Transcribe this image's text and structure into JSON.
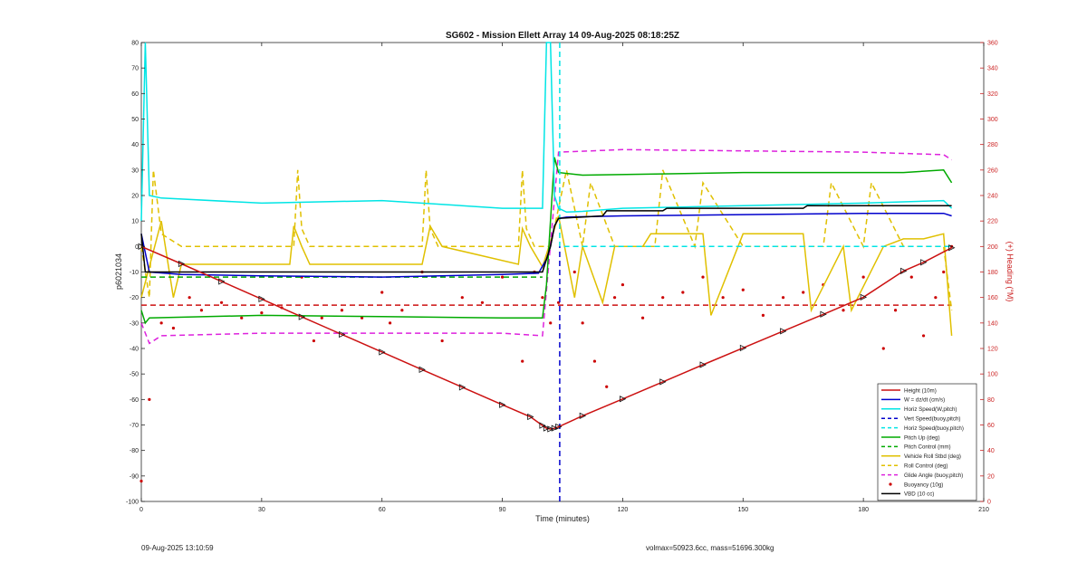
{
  "footer": {
    "left": "09-Aug-2025 13:10:59",
    "right": "volmax=50923.6cc, mass=51696.300kg"
  },
  "colors": {
    "height": "#cc1111",
    "w": "#0000cc",
    "horiz": "#00e5e5",
    "vert_speed_buoy": "#0000cc",
    "horiz_speed_buoy": "#00e5e5",
    "pitch": "#00aa00",
    "roll": "#e0c000",
    "glide": "#dd22dd",
    "buoyancy_pts": "#cc0000",
    "vbd": "#000000",
    "right_axis": "#cc2222"
  },
  "chart_data": {
    "type": "line",
    "title": "SG602 - Mission Ellett Array 14 09-Aug-2025 08:18:25Z",
    "xlabel": "Time (minutes)",
    "ylabel": "p6021034",
    "y2label": "(+) Heading (°M)",
    "xlim": [
      0,
      210
    ],
    "ylim": [
      -100,
      80
    ],
    "y2lim": [
      0,
      360
    ],
    "xticks": [
      0,
      30,
      60,
      90,
      120,
      150,
      180,
      210
    ],
    "yticks": [
      -100,
      -90,
      -80,
      -70,
      -60,
      -50,
      -40,
      -30,
      -20,
      -10,
      0,
      10,
      20,
      30,
      40,
      50,
      60,
      70,
      80
    ],
    "y2ticks": [
      0,
      20,
      40,
      60,
      80,
      100,
      120,
      140,
      160,
      180,
      200,
      220,
      240,
      260,
      280,
      300,
      320,
      340,
      360
    ],
    "grid": false,
    "legend_position": "bottom-right",
    "series": [
      {
        "name": "Height (10m)",
        "color": "#cc1111",
        "style": "solid",
        "markers": "triangle",
        "x": [
          0,
          10,
          20,
          30,
          40,
          50,
          60,
          70,
          80,
          90,
          97,
          100,
          101,
          102,
          103,
          104,
          110,
          120,
          130,
          140,
          150,
          160,
          170,
          180,
          190,
          195,
          202
        ],
        "y": [
          0,
          -6.8,
          -13.7,
          -20.6,
          -27.6,
          -34.5,
          -41.4,
          -48.3,
          -55.2,
          -62.1,
          -66.8,
          -70.2,
          -71.3,
          -71.6,
          -71.3,
          -70.7,
          -66.4,
          -59.8,
          -53.1,
          -46.4,
          -39.8,
          -33.2,
          -26.6,
          -19.9,
          -9.6,
          -6.2,
          -0.5
        ]
      },
      {
        "name": "W = dz/dt (cm/s)",
        "color": "#0000cc",
        "style": "solid",
        "x": [
          0,
          2,
          10,
          30,
          60,
          90,
          99,
          101,
          102,
          103,
          104,
          106,
          120,
          150,
          180,
          200,
          202
        ],
        "y": [
          5,
          -10,
          -11,
          -11.5,
          -12,
          -11,
          -10.5,
          -5,
          0,
          8,
          11,
          11.5,
          12,
          12.5,
          13,
          13,
          12
        ]
      },
      {
        "name": "Horiz Speed(W,pitch)",
        "color": "#00e5e5",
        "style": "solid",
        "x": [
          0,
          1,
          2,
          5,
          30,
          60,
          90,
          100,
          101,
          102,
          103,
          104,
          106,
          110,
          120,
          150,
          180,
          200,
          202
        ],
        "y": [
          10,
          80,
          20,
          19,
          17,
          18,
          15,
          15,
          80,
          80,
          20,
          15,
          13.5,
          13.8,
          15,
          16,
          17,
          18,
          15
        ]
      },
      {
        "name": "Vert Speed(buoy,pitch)",
        "color": "#0000cc",
        "style": "dashed",
        "x": [
          104.3,
          104.3
        ],
        "y": [
          -100,
          0
        ]
      },
      {
        "name": "Horiz Speed(buoy,pitch)",
        "color": "#00e5e5",
        "style": "dashed",
        "x": [
          104.3,
          104.3,
          202
        ],
        "y": [
          80,
          0,
          0
        ]
      },
      {
        "name": "Pitch Up (deg)",
        "color": "#00aa00",
        "style": "solid",
        "x": [
          0,
          1,
          2,
          30,
          60,
          90,
          100,
          101,
          102,
          103,
          104,
          110,
          130,
          150,
          170,
          190,
          200,
          202
        ],
        "y": [
          -25,
          -30,
          -28,
          -27,
          -27.5,
          -28,
          -28,
          -15,
          10,
          35,
          29,
          28,
          28.5,
          29,
          29,
          29,
          30,
          25
        ]
      },
      {
        "name": "Pitch Control (mm)",
        "color": "#00aa00",
        "style": "dashed",
        "x": [
          0,
          100
        ],
        "y": [
          -12,
          -12
        ]
      },
      {
        "name": "Vehicle Roll Stbd (deg)",
        "color": "#e0c000",
        "style": "solid",
        "x": [
          0,
          5,
          8,
          10,
          37,
          38,
          40,
          42,
          70,
          72,
          75,
          94,
          95,
          97,
          100,
          104,
          108,
          110,
          115,
          118,
          125,
          127,
          140,
          142,
          150,
          165,
          167,
          175,
          177,
          185,
          190,
          195,
          200,
          202
        ],
        "y": [
          -20,
          10,
          -20,
          -7,
          -7,
          8,
          0,
          -7,
          -7,
          8,
          0,
          -7,
          7,
          0,
          -8,
          12,
          -20,
          0,
          -22,
          0,
          0,
          5,
          5,
          -27,
          5,
          5,
          -25,
          0,
          -25,
          0,
          3,
          3,
          5,
          -35
        ]
      },
      {
        "name": "Roll Control (deg)",
        "color": "#e0c000",
        "style": "dashed",
        "x": [
          0,
          2,
          3,
          5,
          10,
          38,
          39,
          40,
          42,
          70,
          71,
          72,
          74,
          94,
          95,
          96,
          98,
          102,
          106,
          110,
          112,
          118,
          128,
          130,
          138,
          140,
          150,
          170,
          172,
          180,
          182,
          190,
          200,
          202
        ],
        "y": [
          0,
          -20,
          30,
          5,
          0,
          0,
          30,
          7,
          0,
          0,
          30,
          7,
          0,
          0,
          30,
          7,
          0,
          0,
          30,
          0,
          25,
          0,
          0,
          30,
          0,
          25,
          0,
          0,
          25,
          0,
          25,
          0,
          0,
          -25
        ]
      },
      {
        "name": "Glide Angle (buoy,pitch)",
        "color": "#dd22dd",
        "style": "dashed",
        "x": [
          0,
          2,
          5,
          30,
          60,
          90,
          100,
          104,
          120,
          150,
          180,
          200,
          202
        ],
        "y": [
          -30,
          -38,
          -35,
          -34,
          -34,
          -34,
          -35,
          37,
          38,
          37.5,
          37,
          36,
          34
        ]
      },
      {
        "name": "Buoyancy (10g)",
        "color": "#cc0000",
        "style": "dots",
        "x": [
          0,
          2,
          5,
          8,
          12,
          15,
          20,
          25,
          30,
          35,
          40,
          43,
          45,
          50,
          55,
          60,
          62,
          65,
          70,
          75,
          80,
          85,
          90,
          95,
          98,
          100,
          102,
          104,
          108,
          110,
          113,
          116,
          118,
          120,
          125,
          130,
          135,
          140,
          145,
          150,
          155,
          160,
          165,
          170,
          175,
          180,
          185,
          188,
          192,
          195,
          198,
          200,
          202
        ],
        "y": [
          -92,
          -60,
          -30,
          -32,
          -20,
          -25,
          -22,
          -28,
          -26,
          -24,
          -12,
          -37,
          -28,
          -25,
          -28,
          -18,
          -30,
          -25,
          -10,
          -37,
          -20,
          -22,
          -12,
          -45,
          -10,
          -20,
          -30,
          -22,
          -10,
          -30,
          -45,
          -55,
          -20,
          -15,
          -28,
          -20,
          -18,
          -12,
          -20,
          -17,
          -27,
          -20,
          -18,
          -15,
          -25,
          -12,
          -40,
          -25,
          -12,
          -35,
          -20,
          -10,
          0
        ]
      },
      {
        "name": "VBD (10 cc)",
        "color": "#000000",
        "style": "solid",
        "x": [
          0,
          1,
          100,
          101,
          102,
          103,
          104,
          115,
          116,
          130,
          131,
          165,
          166,
          200,
          202
        ],
        "y": [
          5,
          -10,
          -10,
          -5,
          0,
          8,
          11,
          12,
          14,
          14,
          15,
          15,
          16,
          16,
          16
        ]
      }
    ],
    "secondary_series": [
      {
        "name": "Heading",
        "axis": "right",
        "color": "#cc1111",
        "style": "dashed",
        "x": [
          0,
          202
        ],
        "y": [
          154,
          154
        ]
      }
    ]
  }
}
